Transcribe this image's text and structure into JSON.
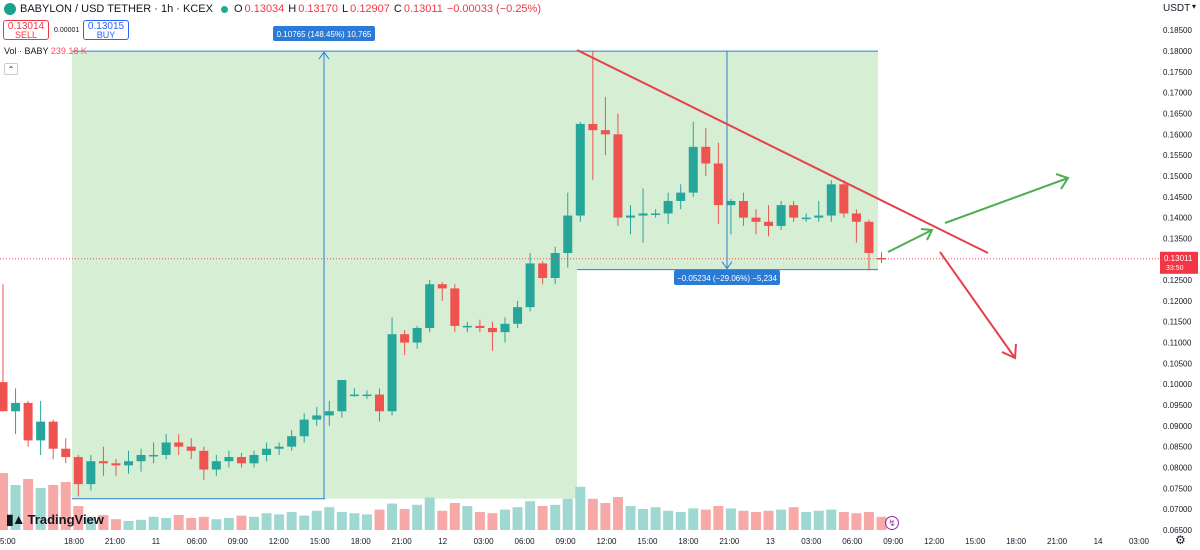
{
  "header": {
    "symbol": "BABYLON / USD TETHER · 1h · KCEX",
    "open_label": "O",
    "open": "0.13034",
    "high_label": "H",
    "high": "0.13170",
    "low_label": "L",
    "low": "0.12907",
    "close_label": "C",
    "close": "0.13011",
    "change": "−0.00033 (−0.25%)"
  },
  "trade": {
    "sell_price": "0.13014",
    "sell_label": "SELL",
    "spread": "0.00001",
    "buy_price": "0.13015",
    "buy_label": "BUY"
  },
  "volume_legend": {
    "label": "Vol · BABY",
    "value": "239.18 K"
  },
  "collapse_glyph": "⌃",
  "currency": "USDT",
  "brand": "TradingView",
  "chart_data": {
    "type": "candlestick",
    "interval": "1h",
    "x_tick_labels": [
      "5:00",
      "18:00",
      "21:00",
      "11",
      "06:00",
      "09:00",
      "12:00",
      "15:00",
      "18:00",
      "21:00",
      "12",
      "03:00",
      "06:00",
      "09:00",
      "12:00",
      "15:00",
      "18:00",
      "21:00",
      "13",
      "03:00",
      "06:00",
      "09:00",
      "12:00",
      "15:00",
      "18:00",
      "21:00",
      "14",
      "03:00"
    ],
    "y_tick_labels": [
      "0.06500",
      "0.07000",
      "0.07500",
      "0.08000",
      "0.08500",
      "0.09000",
      "0.09500",
      "0.10000",
      "0.10500",
      "0.11000",
      "0.11500",
      "0.12000",
      "0.12500",
      "0.13000",
      "0.13500",
      "0.14000",
      "0.14500",
      "0.15000",
      "0.15500",
      "0.16000",
      "0.16500",
      "0.17000",
      "0.17500",
      "0.18000",
      "0.18500"
    ],
    "y_range": [
      0.0633,
      0.1877
    ],
    "grid": false,
    "last_price": "0.13011",
    "countdown": "33:50",
    "candles": [
      [
        0.1005,
        0.124,
        0.0935,
        0.0935
      ],
      [
        0.0935,
        0.099,
        0.088,
        0.0955
      ],
      [
        0.0955,
        0.096,
        0.085,
        0.0865
      ],
      [
        0.0865,
        0.096,
        0.083,
        0.091
      ],
      [
        0.091,
        0.0915,
        0.082,
        0.0845
      ],
      [
        0.0845,
        0.087,
        0.081,
        0.0825
      ],
      [
        0.0825,
        0.083,
        0.073,
        0.076
      ],
      [
        0.076,
        0.083,
        0.0745,
        0.0815
      ],
      [
        0.0815,
        0.085,
        0.078,
        0.081
      ],
      [
        0.081,
        0.082,
        0.078,
        0.0805
      ],
      [
        0.0805,
        0.084,
        0.0785,
        0.0815
      ],
      [
        0.0815,
        0.0845,
        0.079,
        0.083
      ],
      [
        0.083,
        0.086,
        0.081,
        0.083
      ],
      [
        0.083,
        0.088,
        0.082,
        0.086
      ],
      [
        0.086,
        0.088,
        0.083,
        0.085
      ],
      [
        0.085,
        0.087,
        0.082,
        0.084
      ],
      [
        0.084,
        0.085,
        0.077,
        0.0795
      ],
      [
        0.0795,
        0.083,
        0.078,
        0.0815
      ],
      [
        0.0815,
        0.084,
        0.08,
        0.0825
      ],
      [
        0.0825,
        0.0835,
        0.08,
        0.081
      ],
      [
        0.081,
        0.084,
        0.08,
        0.083
      ],
      [
        0.083,
        0.086,
        0.0815,
        0.0845
      ],
      [
        0.0845,
        0.086,
        0.083,
        0.085
      ],
      [
        0.085,
        0.089,
        0.084,
        0.0875
      ],
      [
        0.0875,
        0.093,
        0.086,
        0.0915
      ],
      [
        0.0915,
        0.0945,
        0.09,
        0.0925
      ],
      [
        0.0925,
        0.096,
        0.09,
        0.0935
      ],
      [
        0.0935,
        0.101,
        0.092,
        0.101
      ],
      [
        0.0975,
        0.099,
        0.097,
        0.0975
      ],
      [
        0.0975,
        0.0985,
        0.0965,
        0.0975
      ],
      [
        0.0975,
        0.099,
        0.091,
        0.0935
      ],
      [
        0.0935,
        0.116,
        0.0925,
        0.112
      ],
      [
        0.112,
        0.113,
        0.107,
        0.11
      ],
      [
        0.11,
        0.114,
        0.1085,
        0.1135
      ],
      [
        0.1135,
        0.125,
        0.1125,
        0.124
      ],
      [
        0.124,
        0.1245,
        0.12,
        0.123
      ],
      [
        0.123,
        0.124,
        0.1125,
        0.114
      ],
      [
        0.114,
        0.115,
        0.1125,
        0.114
      ],
      [
        0.114,
        0.1155,
        0.1125,
        0.1135
      ],
      [
        0.1135,
        0.115,
        0.108,
        0.1125
      ],
      [
        0.1125,
        0.116,
        0.11,
        0.1145
      ],
      [
        0.1145,
        0.12,
        0.1135,
        0.1185
      ],
      [
        0.1185,
        0.1315,
        0.1175,
        0.129
      ],
      [
        0.129,
        0.1295,
        0.124,
        0.1255
      ],
      [
        0.1255,
        0.133,
        0.124,
        0.1315
      ],
      [
        0.1315,
        0.146,
        0.128,
        0.1405
      ],
      [
        0.1405,
        0.163,
        0.139,
        0.1625
      ],
      [
        0.1625,
        0.18,
        0.149,
        0.161
      ],
      [
        0.161,
        0.169,
        0.155,
        0.16
      ],
      [
        0.16,
        0.165,
        0.138,
        0.14
      ],
      [
        0.14,
        0.143,
        0.136,
        0.1405
      ],
      [
        0.1405,
        0.147,
        0.134,
        0.141
      ],
      [
        0.141,
        0.142,
        0.14,
        0.141
      ],
      [
        0.141,
        0.146,
        0.1385,
        0.144
      ],
      [
        0.144,
        0.148,
        0.142,
        0.146
      ],
      [
        0.146,
        0.163,
        0.145,
        0.157
      ],
      [
        0.157,
        0.1615,
        0.15,
        0.153
      ],
      [
        0.153,
        0.158,
        0.1385,
        0.143
      ],
      [
        0.143,
        0.1445,
        0.136,
        0.144
      ],
      [
        0.144,
        0.146,
        0.138,
        0.14
      ],
      [
        0.14,
        0.142,
        0.136,
        0.139
      ],
      [
        0.139,
        0.143,
        0.1355,
        0.138
      ],
      [
        0.138,
        0.144,
        0.137,
        0.143
      ],
      [
        0.143,
        0.144,
        0.139,
        0.14
      ],
      [
        0.14,
        0.141,
        0.139,
        0.14
      ],
      [
        0.14,
        0.144,
        0.139,
        0.1405
      ],
      [
        0.1405,
        0.149,
        0.139,
        0.148
      ],
      [
        0.148,
        0.149,
        0.14,
        0.141
      ],
      [
        0.141,
        0.142,
        0.134,
        0.139
      ],
      [
        0.139,
        0.1395,
        0.1275,
        0.1315
      ],
      [
        0.1303,
        0.1317,
        0.1291,
        0.1301
      ]
    ],
    "volume_max": 1.0,
    "volumes": [
      0.95,
      0.75,
      0.85,
      0.7,
      0.75,
      0.8,
      0.4,
      0.22,
      0.25,
      0.18,
      0.15,
      0.17,
      0.22,
      0.2,
      0.25,
      0.2,
      0.22,
      0.18,
      0.2,
      0.24,
      0.22,
      0.28,
      0.26,
      0.3,
      0.24,
      0.32,
      0.38,
      0.3,
      0.28,
      0.26,
      0.34,
      0.44,
      0.35,
      0.42,
      0.54,
      0.32,
      0.45,
      0.4,
      0.3,
      0.28,
      0.34,
      0.38,
      0.48,
      0.4,
      0.42,
      0.52,
      0.72,
      0.52,
      0.45,
      0.55,
      0.4,
      0.35,
      0.38,
      0.32,
      0.3,
      0.36,
      0.34,
      0.4,
      0.36,
      0.32,
      0.3,
      0.32,
      0.34,
      0.38,
      0.3,
      0.32,
      0.34,
      0.3,
      0.28,
      0.3,
      0.22
    ],
    "drawings": {
      "range_up_label": "0.10765 (148.45%) 10,765",
      "range_down_label": "−0.05234 (−29.06%) −5,234"
    }
  },
  "colors": {
    "up": "#26a69a",
    "down": "#ef5350",
    "vol_up": "#9ed8d0",
    "vol_down": "#f7a9a7",
    "zone": "#d6eed3",
    "zone_border": "#a8d5a2",
    "measure": "#2e7ed4",
    "trend": "#e6404d",
    "arrow_up": "#4caf50",
    "price_tag": "#f23645"
  }
}
